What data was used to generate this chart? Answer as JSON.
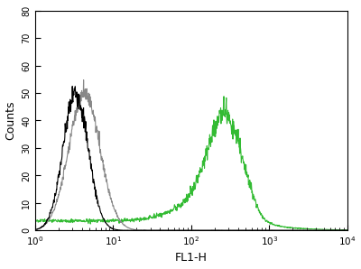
{
  "xlabel": "FL1-H",
  "ylabel": "Counts",
  "xlim": [
    1,
    10000
  ],
  "ylim": [
    0,
    80
  ],
  "yticks": [
    0,
    10,
    20,
    30,
    40,
    50,
    60,
    70,
    80
  ],
  "background_color": "#ffffff",
  "line_width": 0.8,
  "black_color": "#000000",
  "grey_color": "#888888",
  "green_color": "#33bb33",
  "black_peak_log": 0.52,
  "black_sigma_log": 0.16,
  "black_height": 50,
  "grey_peak_log": 0.63,
  "grey_sigma_log": 0.2,
  "grey_height": 50,
  "green_peak_log": 2.44,
  "green_sigma_log": 0.22,
  "green_height": 35,
  "green_baseline": 3.5,
  "n_points": 1000
}
